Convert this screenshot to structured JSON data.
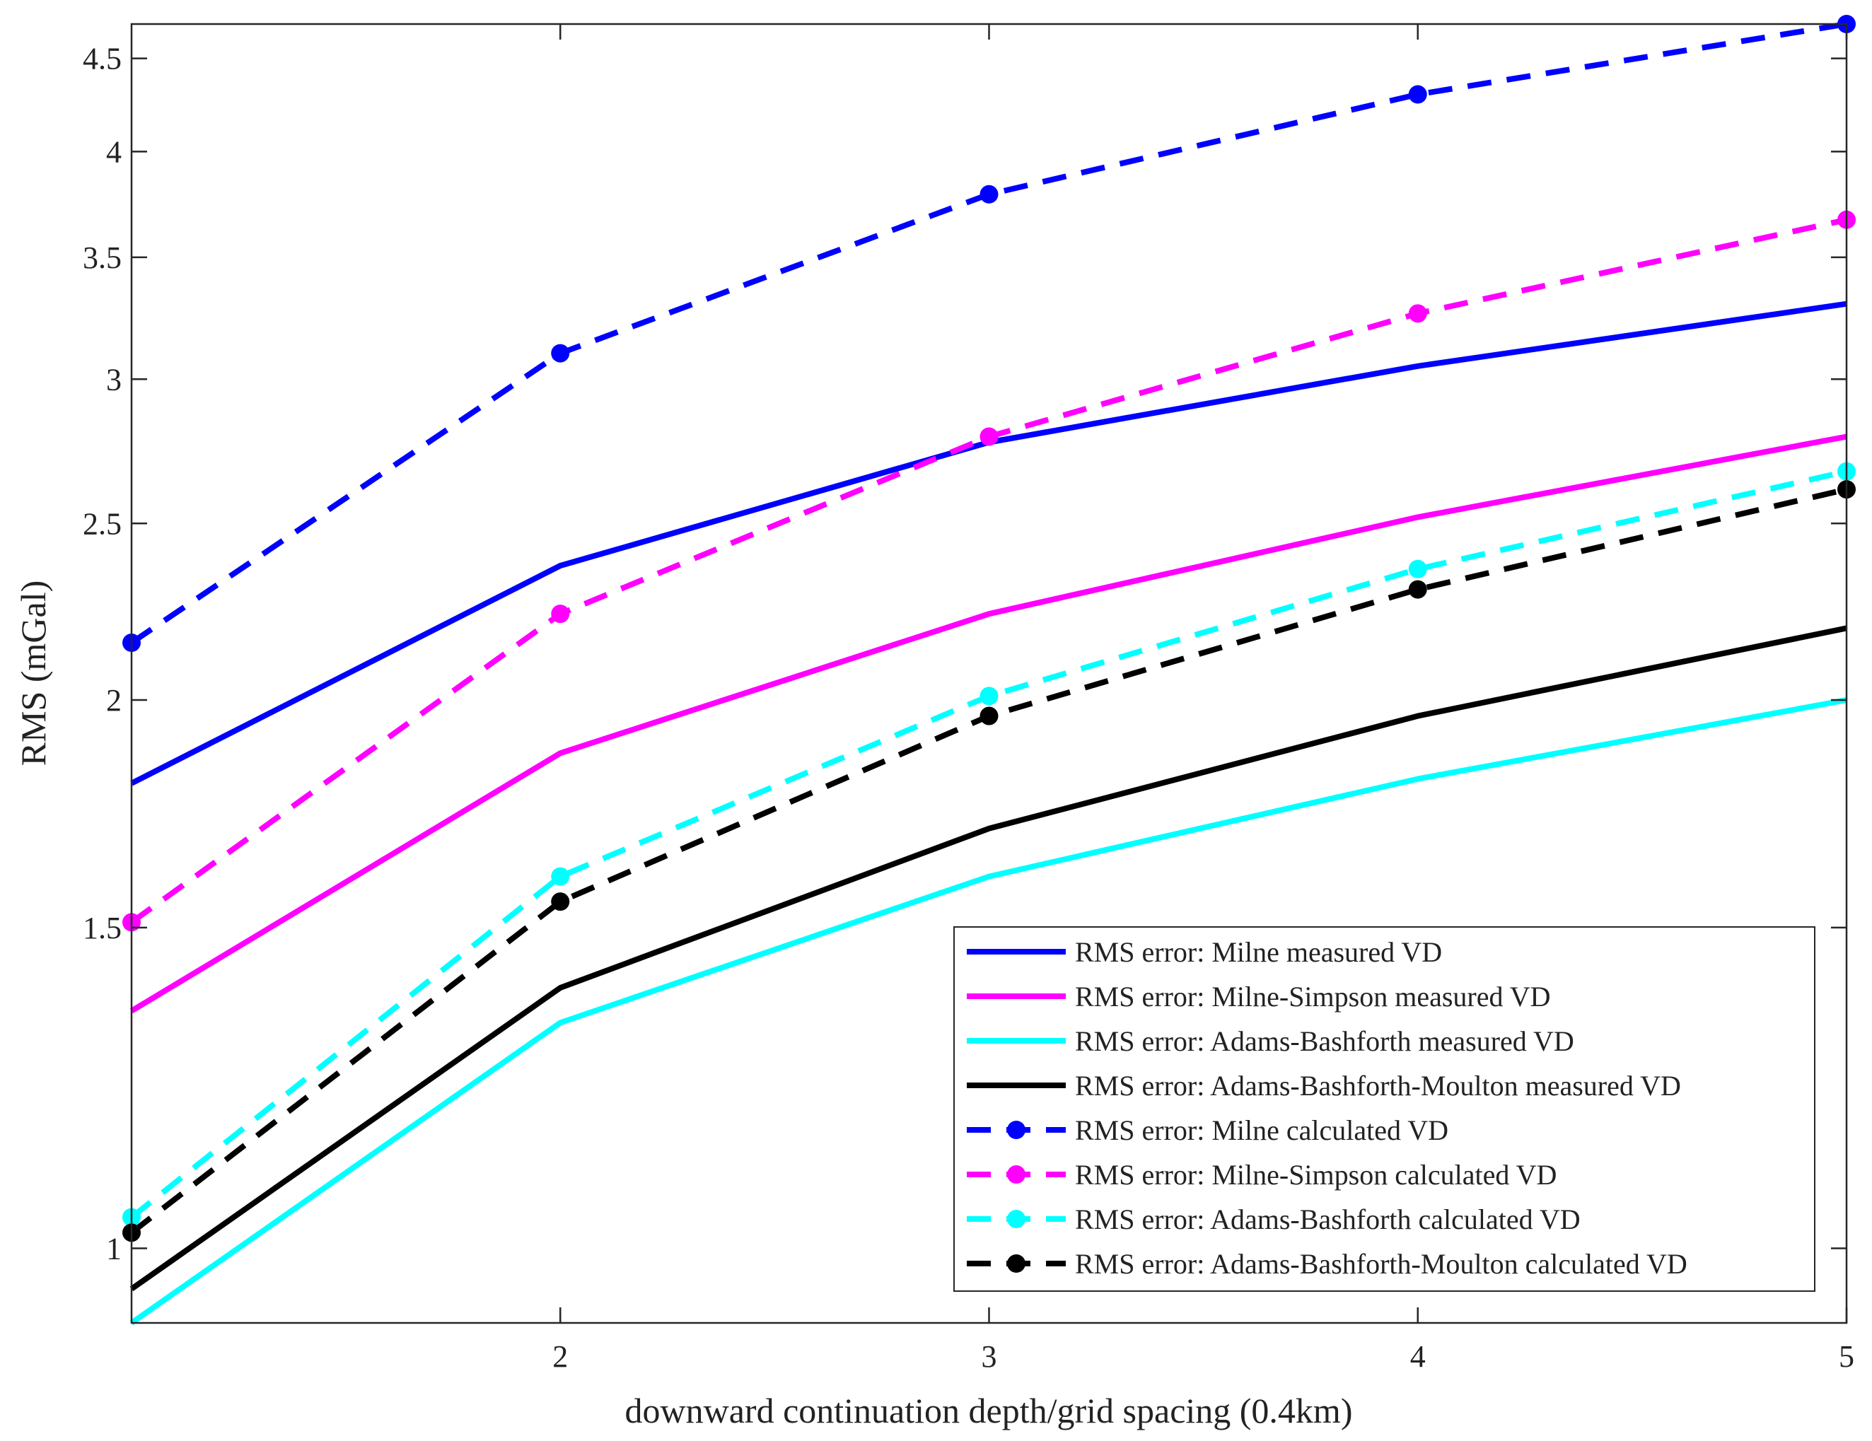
{
  "chart_data": {
    "type": "line",
    "xlabel": "downward continuation depth/grid spacing (0.4km)",
    "ylabel": "RMS (mGal)",
    "x": [
      1,
      2,
      3,
      4,
      5
    ],
    "xlim": [
      1,
      5
    ],
    "ylim": [
      0.91,
      4.7
    ],
    "yscale": "log",
    "xticks": [
      2,
      3,
      4,
      5
    ],
    "xtick_labels": [
      "2",
      "3",
      "4",
      "5"
    ],
    "yticks": [
      1,
      1.5,
      2,
      2.5,
      3,
      3.5,
      4,
      4.5
    ],
    "ytick_labels": [
      "1",
      "1.5",
      "2",
      "2.5",
      "3",
      "3.5",
      "4",
      "4.5"
    ],
    "grid": false,
    "legend_position": "bottom-right",
    "series": [
      {
        "name": "RMS error: Milne measured VD",
        "color": "#0000ff",
        "style": "solid",
        "marker": false,
        "values": [
          1.8,
          2.37,
          2.77,
          3.05,
          3.3
        ]
      },
      {
        "name": "RMS error: Milne-Simpson measured VD",
        "color": "#ff00ff",
        "style": "solid",
        "marker": false,
        "values": [
          1.35,
          1.87,
          2.23,
          2.52,
          2.79
        ]
      },
      {
        "name": "RMS error: Adams-Bashforth measured VD",
        "color": "#00ffff",
        "style": "solid",
        "marker": false,
        "values": [
          0.91,
          1.33,
          1.6,
          1.81,
          2.0
        ]
      },
      {
        "name": "RMS error: Adams-Bashforth-Moulton measured VD",
        "color": "#000000",
        "style": "solid",
        "marker": false,
        "values": [
          0.95,
          1.39,
          1.7,
          1.96,
          2.19
        ]
      },
      {
        "name": "RMS error: Milne calculated VD",
        "color": "#0000ff",
        "style": "dashed",
        "marker": true,
        "values": [
          2.15,
          3.1,
          3.79,
          4.3,
          4.7
        ]
      },
      {
        "name": "RMS error: Milne-Simpson calculated VD",
        "color": "#ff00ff",
        "style": "dashed",
        "marker": true,
        "values": [
          1.51,
          2.23,
          2.79,
          3.26,
          3.67
        ]
      },
      {
        "name": "RMS error: Adams-Bashforth calculated VD",
        "color": "#00ffff",
        "style": "dashed",
        "marker": true,
        "values": [
          1.04,
          1.6,
          2.01,
          2.36,
          2.67
        ]
      },
      {
        "name": "RMS error: Adams-Bashforth-Moulton calculated VD",
        "color": "#000000",
        "style": "dashed",
        "marker": true,
        "values": [
          1.02,
          1.55,
          1.96,
          2.3,
          2.61
        ]
      }
    ]
  }
}
